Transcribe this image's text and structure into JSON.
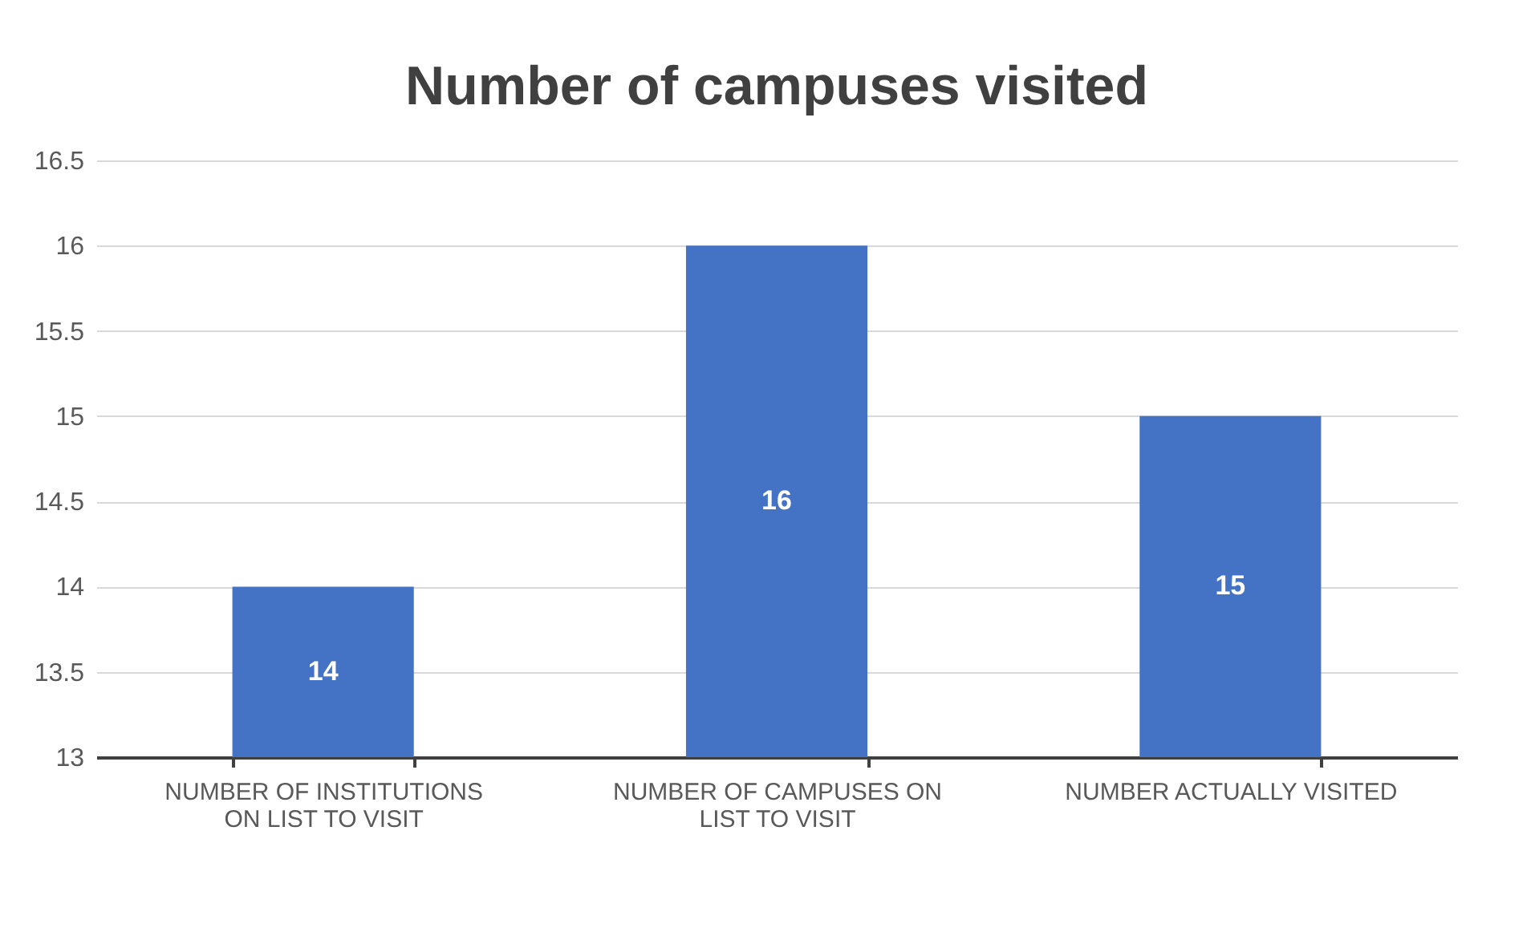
{
  "chart_data": {
    "type": "bar",
    "title": "Number of campuses visited",
    "categories": [
      "NUMBER OF INSTITUTIONS ON LIST TO VISIT",
      "NUMBER OF CAMPUSES ON LIST TO VISIT",
      "NUMBER ACTUALLY VISITED"
    ],
    "values": [
      14,
      16,
      15
    ],
    "color": "#4472c4",
    "ylim": [
      13,
      16.5
    ],
    "yticks": [
      13,
      13.5,
      14,
      14.5,
      15,
      15.5,
      16,
      16.5
    ],
    "grid": "y",
    "data_labels": true
  }
}
